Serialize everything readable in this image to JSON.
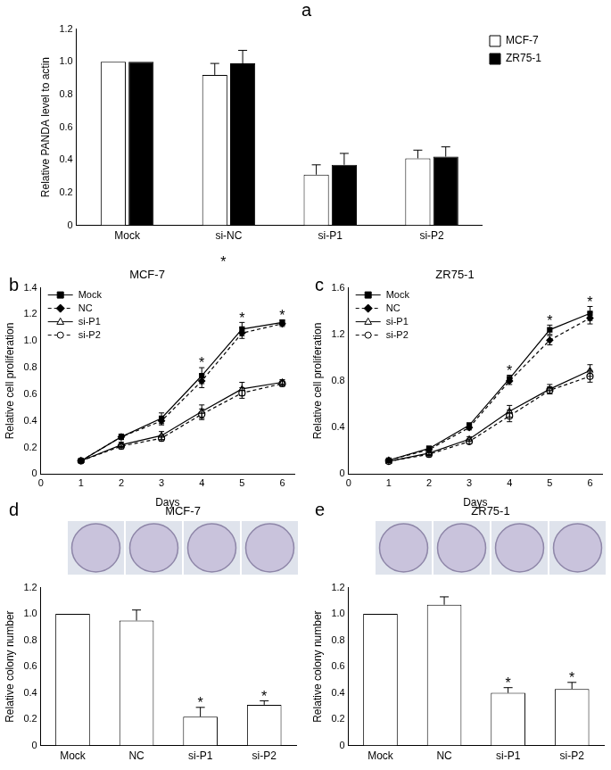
{
  "chart_data": [
    {
      "type": "bar",
      "panel": "a",
      "categories": [
        "Mock",
        "si-NC",
        "si-P1",
        "si-P2"
      ],
      "series": [
        {
          "name": "MCF-7",
          "color": "#ffffff",
          "values": [
            1.0,
            0.92,
            0.31,
            0.41
          ],
          "errors": [
            0,
            0.07,
            0.06,
            0.05
          ]
        },
        {
          "name": "ZR75-1",
          "color": "#000000",
          "values": [
            1.0,
            0.99,
            0.37,
            0.42
          ],
          "errors": [
            0,
            0.08,
            0.07,
            0.06
          ]
        }
      ],
      "y_label": "Relative PANDA level to actin",
      "ylim": [
        0,
        1.2
      ],
      "yticks": [
        0,
        0.2,
        0.4,
        0.6,
        {
          "value": 0.8,
          "label": "0.8"
        },
        {
          "value": 1,
          "label": "1.0"
        },
        1.2
      ],
      "grid": false,
      "legend": "right"
    },
    {
      "type": "line",
      "panel": "b",
      "title": "MCF-7",
      "annotations": [
        "*"
      ],
      "x": [
        1,
        2,
        3,
        4,
        5,
        6
      ],
      "series": [
        {
          "name": "Mock",
          "color": "#000000",
          "marker": "square",
          "line_style": "solid",
          "values": [
            0.1,
            0.28,
            0.42,
            0.74,
            1.09,
            1.14
          ],
          "errors": [
            0.01,
            0.02,
            0.04,
            0.06,
            0.05,
            0.02
          ]
        },
        {
          "name": "NC",
          "color": "#000000",
          "marker": "diamond",
          "line_style": "dashed",
          "values": [
            0.1,
            0.28,
            0.4,
            0.7,
            1.06,
            1.13
          ],
          "errors": [
            0.01,
            0.02,
            0.03,
            0.05,
            0.04,
            0.02
          ]
        },
        {
          "name": "si-P1",
          "color": "#000000",
          "marker": "open_triangle",
          "line_style": "solid",
          "values": [
            0.1,
            0.22,
            0.29,
            0.47,
            0.64,
            0.69
          ],
          "errors": [
            0.01,
            0.02,
            0.03,
            0.05,
            0.05,
            0.02
          ]
        },
        {
          "name": "si-P2",
          "color": "#000000",
          "marker": "open_circle",
          "line_style": "dashed",
          "values": [
            0.1,
            0.21,
            0.27,
            0.45,
            0.61,
            0.68
          ],
          "errors": [
            0.01,
            0.02,
            0.02,
            0.04,
            0.04,
            0.02
          ]
        }
      ],
      "significance": {
        "at": [
          4,
          5,
          6
        ],
        "label": "*"
      },
      "x_label": "Days",
      "y_label": "Relative cell proliferation",
      "xlim": [
        0,
        6.3
      ],
      "xticks": [
        0,
        1,
        2,
        3,
        4,
        5,
        6
      ],
      "ylim": [
        0,
        1.4
      ],
      "yticks": [
        0,
        0.2,
        0.4,
        0.6,
        0.8,
        {
          "value": 1,
          "label": "1.0"
        },
        1.2,
        1.4
      ],
      "grid": false,
      "legend": "top-left"
    },
    {
      "type": "line",
      "panel": "c",
      "title": "ZR75-1",
      "x": [
        1,
        2,
        3,
        4,
        5,
        6
      ],
      "series": [
        {
          "name": "Mock",
          "color": "#000000",
          "marker": "square",
          "line_style": "solid",
          "values": [
            0.12,
            0.22,
            0.42,
            0.82,
            1.24,
            1.38
          ],
          "errors": [
            0.01,
            0.02,
            0.02,
            0.03,
            0.04,
            0.06
          ]
        },
        {
          "name": "NC",
          "color": "#000000",
          "marker": "diamond",
          "line_style": "dashed",
          "values": [
            0.12,
            0.21,
            0.4,
            0.8,
            1.15,
            1.34
          ],
          "errors": [
            0.01,
            0.02,
            0.02,
            0.03,
            0.04,
            0.05
          ]
        },
        {
          "name": "si-P1",
          "color": "#000000",
          "marker": "open_triangle",
          "line_style": "solid",
          "values": [
            0.11,
            0.18,
            0.3,
            0.54,
            0.73,
            0.89
          ],
          "errors": [
            0.01,
            0.02,
            0.02,
            0.05,
            0.04,
            0.05
          ]
        },
        {
          "name": "si-P2",
          "color": "#000000",
          "marker": "open_circle",
          "line_style": "dashed",
          "values": [
            0.11,
            0.17,
            0.28,
            0.5,
            0.72,
            0.84
          ],
          "errors": [
            0.01,
            0.02,
            0.02,
            0.05,
            0.03,
            0.05
          ]
        }
      ],
      "significance": {
        "at": [
          4,
          5,
          6
        ],
        "label": "*"
      },
      "x_label": "Days",
      "y_label": "Relative cell proliferation",
      "xlim": [
        0,
        6.3
      ],
      "xticks": [
        0,
        1,
        2,
        3,
        4,
        5,
        6
      ],
      "ylim": [
        0,
        1.6
      ],
      "yticks": [
        0,
        0.4,
        0.8,
        1.2,
        1.6
      ],
      "grid": false,
      "legend": "top-left"
    },
    {
      "type": "bar",
      "panel": "d",
      "title": "MCF-7",
      "categories": [
        "Mock",
        "NC",
        "si-P1",
        "si-P2"
      ],
      "series": [
        {
          "name": "MCF-7",
          "color": "#ffffff",
          "values": [
            1.0,
            0.95,
            0.22,
            0.31
          ],
          "errors": [
            0,
            0.08,
            0.07,
            0.03
          ]
        }
      ],
      "significance": {
        "at": [
          "si-P1",
          "si-P2"
        ],
        "label": "*"
      },
      "y_label": "Relative colony number",
      "ylim": [
        0,
        1.2
      ],
      "yticks": [
        0,
        0.2,
        0.4,
        0.6,
        0.8,
        {
          "value": 1,
          "label": "1.0"
        },
        1.2
      ],
      "grid": false
    },
    {
      "type": "bar",
      "panel": "e",
      "title": "ZR75-1",
      "categories": [
        "Mock",
        "NC",
        "si-P1",
        "si-P2"
      ],
      "series": [
        {
          "name": "ZR75-1",
          "color": "#ffffff",
          "values": [
            1.0,
            1.07,
            0.4,
            0.43
          ],
          "errors": [
            0,
            0.06,
            0.04,
            0.05
          ]
        }
      ],
      "significance": {
        "at": [
          "si-P1",
          "si-P2"
        ],
        "label": "*"
      },
      "y_label": "Relative colony number",
      "ylim": [
        0,
        1.2
      ],
      "yticks": [
        0,
        0.2,
        0.4,
        0.6,
        0.8,
        {
          "value": 1,
          "label": "1.0"
        },
        1.2
      ],
      "grid": false
    }
  ]
}
